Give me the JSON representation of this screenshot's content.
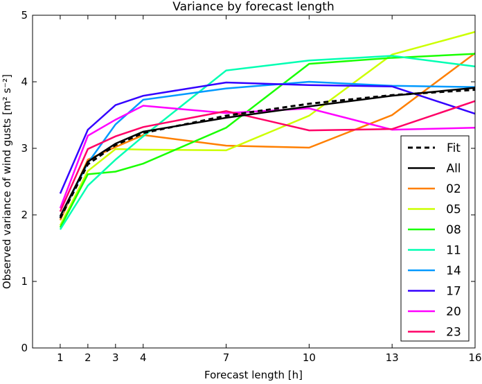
{
  "chart_data": {
    "type": "line",
    "title": "Variance by forecast length",
    "xlabel": "Forecast length [h]",
    "ylabel": "Observed variance of wind gusts [m² s⁻²]",
    "xlim": [
      0,
      16
    ],
    "ylim": [
      0,
      5
    ],
    "xticks": [
      1,
      2,
      3,
      4,
      7,
      10,
      13,
      16
    ],
    "yticks": [
      0,
      1,
      2,
      3,
      4,
      5
    ],
    "grid": false,
    "legend_placement": "bottom-right",
    "x": [
      1,
      2,
      3,
      4,
      7,
      10,
      13,
      16
    ],
    "series": [
      {
        "name": "Fit",
        "color": "#000000",
        "dashed": true,
        "values": [
          1.95,
          2.76,
          3.05,
          3.23,
          3.49,
          3.67,
          3.8,
          3.88
        ]
      },
      {
        "name": "All",
        "color": "#000000",
        "dashed": false,
        "values": [
          1.98,
          2.8,
          3.07,
          3.25,
          3.46,
          3.63,
          3.79,
          3.91
        ]
      },
      {
        "name": "02",
        "color": "#ff7f00",
        "dashed": false,
        "values": [
          1.92,
          2.83,
          3.02,
          3.2,
          3.04,
          3.01,
          3.5,
          4.43
        ]
      },
      {
        "name": "05",
        "color": "#ccff00",
        "dashed": false,
        "values": [
          1.84,
          2.66,
          2.99,
          2.98,
          2.97,
          3.49,
          4.41,
          4.75
        ]
      },
      {
        "name": "08",
        "color": "#19ff00",
        "dashed": false,
        "values": [
          1.81,
          2.61,
          2.65,
          2.77,
          3.31,
          4.27,
          4.36,
          4.42
        ]
      },
      {
        "name": "11",
        "color": "#00ffb2",
        "dashed": false,
        "values": [
          1.78,
          2.44,
          2.83,
          3.18,
          4.17,
          4.32,
          4.39,
          4.23
        ]
      },
      {
        "name": "14",
        "color": "#0099ff",
        "dashed": false,
        "values": [
          1.97,
          2.78,
          3.36,
          3.73,
          3.9,
          4.0,
          3.94,
          3.92
        ]
      },
      {
        "name": "17",
        "color": "#3300ff",
        "dashed": false,
        "values": [
          2.32,
          3.28,
          3.65,
          3.79,
          3.99,
          3.95,
          3.93,
          3.52
        ]
      },
      {
        "name": "20",
        "color": "#ff00ff",
        "dashed": false,
        "values": [
          2.1,
          3.19,
          3.43,
          3.64,
          3.53,
          3.6,
          3.28,
          3.31
        ]
      },
      {
        "name": "23",
        "color": "#ff0066",
        "dashed": false,
        "values": [
          2.05,
          2.99,
          3.18,
          3.32,
          3.56,
          3.27,
          3.29,
          3.71
        ]
      }
    ]
  }
}
